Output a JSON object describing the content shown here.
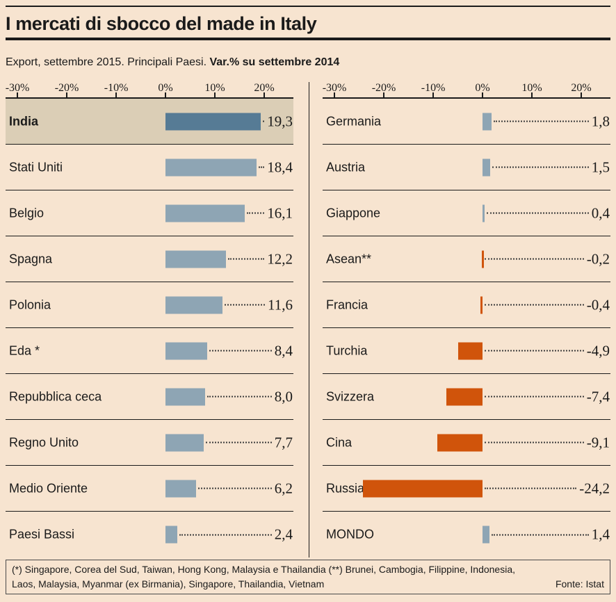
{
  "header": {
    "title": "I mercati di sbocco del made in Italy",
    "subtitle_regular": "Export, settembre 2015. Principali Paesi. ",
    "subtitle_bold": "Var.% su settembre 2014"
  },
  "colors": {
    "background": "#f7e4d0",
    "highlight_row_bg": "#dbceb6",
    "bar_positive": "#8ea5b4",
    "bar_negative": "#d0540b",
    "bar_highlight": "#567b95",
    "line": "#1a1a1a",
    "text": "#1a1a1a"
  },
  "axis": {
    "tick_labels": [
      "-30%",
      "-20%",
      "-10%",
      "0%",
      "10%",
      "20%"
    ],
    "tick_values": [
      -30,
      -20,
      -10,
      0,
      10,
      20
    ],
    "min": -32.4,
    "max": 25.9
  },
  "chart_data": {
    "type": "bar",
    "orientation": "horizontal",
    "title": "I mercati di sbocco del made in Italy",
    "subtitle": "Export, settembre 2015. Principali Paesi. Var.% su settembre 2014",
    "value_unit": "var. % su settembre 2014",
    "xlim": [
      -32.4,
      25.9
    ],
    "grid": false,
    "columns": [
      {
        "rows": [
          {
            "label": "India",
            "value": 19.3,
            "display": "19,3",
            "highlight": true
          },
          {
            "label": "Stati Uniti",
            "value": 18.4,
            "display": "18,4"
          },
          {
            "label": "Belgio",
            "value": 16.1,
            "display": "16,1"
          },
          {
            "label": "Spagna",
            "value": 12.2,
            "display": "12,2"
          },
          {
            "label": "Polonia",
            "value": 11.6,
            "display": "11,6"
          },
          {
            "label": "Eda *",
            "value": 8.4,
            "display": "8,4"
          },
          {
            "label": "Repubblica ceca",
            "value": 8.0,
            "display": "8,0"
          },
          {
            "label": "Regno Unito",
            "value": 7.7,
            "display": "7,7"
          },
          {
            "label": "Medio Oriente",
            "value": 6.2,
            "display": "6,2"
          },
          {
            "label": "Paesi Bassi",
            "value": 2.4,
            "display": "2,4"
          }
        ]
      },
      {
        "rows": [
          {
            "label": "Germania",
            "value": 1.8,
            "display": "1,8"
          },
          {
            "label": "Austria",
            "value": 1.5,
            "display": "1,5"
          },
          {
            "label": "Giappone",
            "value": 0.4,
            "display": "0,4"
          },
          {
            "label": "Asean**",
            "value": -0.2,
            "display": "-0,2"
          },
          {
            "label": "Francia",
            "value": -0.4,
            "display": "-0,4"
          },
          {
            "label": "Turchia",
            "value": -4.9,
            "display": "-4,9"
          },
          {
            "label": "Svizzera",
            "value": -7.4,
            "display": "-7,4"
          },
          {
            "label": "Cina",
            "value": -9.1,
            "display": "-9,1"
          },
          {
            "label": "Russia",
            "value": -24.2,
            "display": "-24,2"
          },
          {
            "label": "MONDO",
            "value": 1.4,
            "display": "1,4"
          }
        ]
      }
    ]
  },
  "footer": {
    "note_line1": "(*) Singapore, Corea del Sud, Taiwan, Hong Kong, Malaysia e Thailandia (**) Brunei, Cambogia, Filippine, Indonesia,",
    "note_line2": "Laos, Malaysia, Myanmar (ex Birmania), Singapore, Thailandia, Vietnam",
    "source": "Fonte: Istat"
  }
}
